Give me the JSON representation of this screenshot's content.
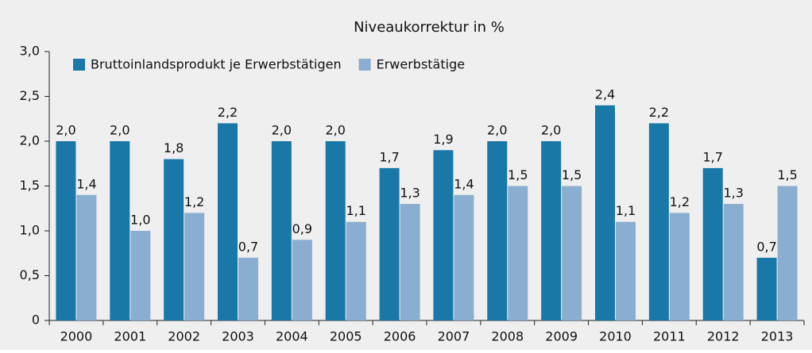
{
  "chart_data": {
    "type": "bar",
    "title": "Niveaukorrektur in %",
    "categories": [
      "2000",
      "2001",
      "2002",
      "2003",
      "2004",
      "2005",
      "2006",
      "2007",
      "2008",
      "2009",
      "2010",
      "2011",
      "2012",
      "2013"
    ],
    "series": [
      {
        "name": "Bruttoinlandsprodukt je Erwerbstätigen",
        "color": "#1a78a8",
        "values": [
          2.0,
          2.0,
          1.8,
          2.2,
          2.0,
          2.0,
          1.7,
          1.9,
          2.0,
          2.0,
          2.4,
          2.2,
          1.7,
          0.7
        ],
        "value_labels": [
          "2,0",
          "2,0",
          "1,8",
          "2,2",
          "2,0",
          "2,0",
          "1,7",
          "1,9",
          "2,0",
          "2,0",
          "2,4",
          "2,2",
          "1,7",
          "0,7"
        ]
      },
      {
        "name": "Erwerbstätige",
        "color": "#8aaed0",
        "values": [
          1.4,
          1.0,
          1.2,
          0.7,
          0.9,
          1.1,
          1.3,
          1.4,
          1.5,
          1.5,
          1.1,
          1.2,
          1.3,
          1.5
        ],
        "value_labels": [
          "1,4",
          "1,0",
          "1,2",
          "0,7",
          "0,9",
          "1,1",
          "1,3",
          "1,4",
          "1,5",
          "1,5",
          "1,1",
          "1,2",
          "1,3",
          "1,5"
        ]
      }
    ],
    "ylim": [
      0,
      3.0
    ],
    "yticks": [
      0,
      {
        "value": 0.5,
        "label": "0,5"
      },
      {
        "value": 1.0,
        "label": "1,0"
      },
      {
        "value": 1.5,
        "label": "1,5"
      },
      {
        "value": 2.0,
        "label": "2,0"
      },
      {
        "value": 2.5,
        "label": "2,5"
      },
      {
        "value": 3.0,
        "label": "3,0"
      }
    ],
    "grid": false,
    "legend": "top-left"
  }
}
